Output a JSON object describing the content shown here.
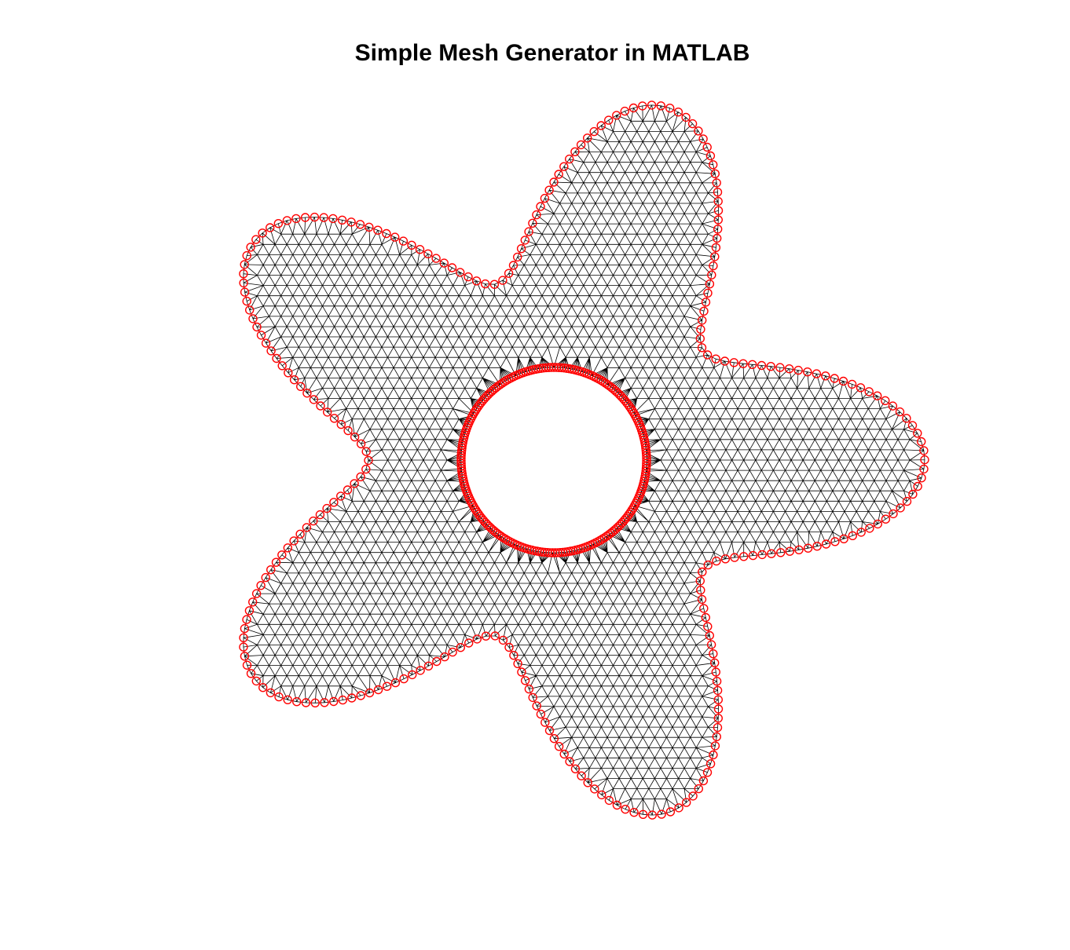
{
  "title": "Simple Mesh Generator in MATLAB",
  "figure": {
    "background": "#ffffff",
    "mesh_edge_color": "#000000",
    "boundary_marker_color": "#ff0000",
    "boundary_marker": "circle",
    "axes_visible": false
  },
  "chart_data": {
    "type": "mesh",
    "title": "Simple Mesh Generator in MATLAB",
    "domain": {
      "outer_boundary": {
        "shape": "five-lobed star",
        "polar_equation": "r = a + b*cos(5*theta)",
        "a": 0.75,
        "b": 0.25,
        "lobes": 5
      },
      "inner_hole": {
        "shape": "circle",
        "radius": 0.25
      }
    },
    "mesh": {
      "element_type": "triangle",
      "edge_color": "#000000"
    },
    "boundary_nodes": {
      "marker": "o",
      "color": "#ff0000"
    },
    "axes_visible": false
  }
}
